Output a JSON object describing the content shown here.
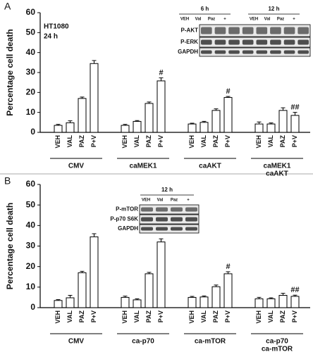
{
  "chart_data": [
    {
      "type": "bar",
      "panel": "A",
      "y_label": "Percentage cell death",
      "notes": [
        "HT1080",
        "24 h"
      ],
      "ylim": [
        0,
        60
      ],
      "yticks": [
        0,
        10,
        20,
        30,
        40,
        50,
        60
      ],
      "groups": [
        {
          "name": [
            "CMV"
          ],
          "categories": [
            "VEH",
            "VAL",
            "PAZ",
            "P+V"
          ],
          "values": [
            3.5,
            4.8,
            17,
            34.5
          ],
          "errors": [
            0.5,
            1,
            0.7,
            1.5
          ]
        },
        {
          "name": [
            "caMEK1"
          ],
          "categories": [
            "VEH",
            "VAL",
            "PAZ",
            "P+V"
          ],
          "values": [
            3.5,
            5.5,
            14.5,
            25.8
          ],
          "errors": [
            0.5,
            0.4,
            0.7,
            1.5
          ],
          "annotation": "#"
        },
        {
          "name": [
            "caAKT"
          ],
          "categories": [
            "VEH",
            "VAL",
            "PAZ",
            "P+V"
          ],
          "values": [
            4.2,
            5,
            11,
            17.5
          ],
          "errors": [
            0.4,
            0.5,
            0.8,
            0.5
          ],
          "annotation": "#"
        },
        {
          "name": [
            "caMEK1",
            "caAKT"
          ],
          "categories": [
            "VEH",
            "VAL",
            "PAZ",
            "P+V"
          ],
          "values": [
            4.2,
            4.2,
            11,
            8.5
          ],
          "errors": [
            1,
            0.5,
            1.3,
            1.5
          ],
          "annotation": "##"
        }
      ],
      "inset": {
        "time_labels": [
          "6 h",
          "12 h"
        ],
        "lanes": [
          "VEH",
          "Val",
          "Paz",
          "+",
          "VEH",
          "Val",
          "Paz",
          "+"
        ],
        "rows": [
          "P-AKT",
          "P-ERK",
          "GAPDH"
        ]
      }
    },
    {
      "type": "bar",
      "panel": "B",
      "y_label": "Percentage cell death",
      "ylim": [
        0,
        60
      ],
      "yticks": [
        0,
        10,
        20,
        30,
        40,
        50,
        60
      ],
      "groups": [
        {
          "name": [
            "CMV"
          ],
          "categories": [
            "VEH",
            "VAL",
            "PAZ",
            "P+V"
          ],
          "values": [
            3.5,
            4.8,
            17,
            34.5
          ],
          "errors": [
            0.4,
            1.2,
            0.7,
            1.5
          ]
        },
        {
          "name": [
            "ca-p70"
          ],
          "categories": [
            "VEH",
            "VAL",
            "PAZ",
            "P+V"
          ],
          "values": [
            5,
            3.8,
            16.5,
            32
          ],
          "errors": [
            0.6,
            0.5,
            0.7,
            1.5
          ]
        },
        {
          "name": [
            "ca-mTOR"
          ],
          "categories": [
            "VEH",
            "VAL",
            "PAZ",
            "P+V"
          ],
          "values": [
            5,
            5.2,
            10.2,
            16.5
          ],
          "errors": [
            0.5,
            0.5,
            0.8,
            1
          ],
          "annotation": "#"
        },
        {
          "name": [
            "ca-p70",
            "ca-mTOR"
          ],
          "categories": [
            "VEH",
            "VAL",
            "PAZ",
            "P+V"
          ],
          "values": [
            4.3,
            4.3,
            6,
            5.5
          ],
          "errors": [
            0.7,
            0.5,
            1,
            0.6
          ],
          "annotation": "##"
        }
      ],
      "inset": {
        "time_labels": [
          "12 h"
        ],
        "lanes": [
          "VEH",
          "Val",
          "Paz",
          "+"
        ],
        "rows": [
          "P-mTOR",
          "P-p70 S6K",
          "GAPDH"
        ]
      }
    }
  ]
}
